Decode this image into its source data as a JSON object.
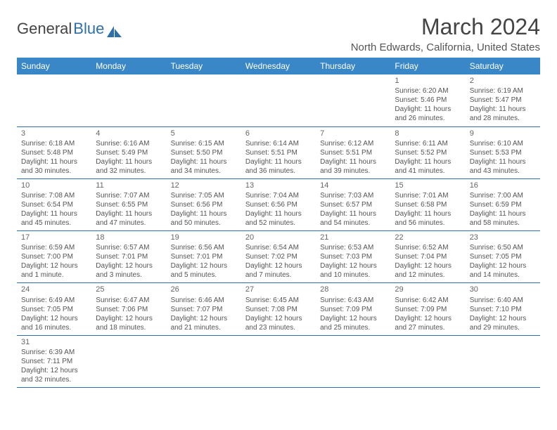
{
  "logo": {
    "text1": "General",
    "text2": "Blue"
  },
  "title": "March 2024",
  "location": "North Edwards, California, United States",
  "colors": {
    "header_bg": "#3a87c7",
    "border": "#2f6fa8",
    "text": "#555"
  },
  "dayNames": [
    "Sunday",
    "Monday",
    "Tuesday",
    "Wednesday",
    "Thursday",
    "Friday",
    "Saturday"
  ],
  "weeks": [
    [
      null,
      null,
      null,
      null,
      null,
      {
        "n": "1",
        "sr": "Sunrise: 6:20 AM",
        "ss": "Sunset: 5:46 PM",
        "d1": "Daylight: 11 hours",
        "d2": "and 26 minutes."
      },
      {
        "n": "2",
        "sr": "Sunrise: 6:19 AM",
        "ss": "Sunset: 5:47 PM",
        "d1": "Daylight: 11 hours",
        "d2": "and 28 minutes."
      }
    ],
    [
      {
        "n": "3",
        "sr": "Sunrise: 6:18 AM",
        "ss": "Sunset: 5:48 PM",
        "d1": "Daylight: 11 hours",
        "d2": "and 30 minutes."
      },
      {
        "n": "4",
        "sr": "Sunrise: 6:16 AM",
        "ss": "Sunset: 5:49 PM",
        "d1": "Daylight: 11 hours",
        "d2": "and 32 minutes."
      },
      {
        "n": "5",
        "sr": "Sunrise: 6:15 AM",
        "ss": "Sunset: 5:50 PM",
        "d1": "Daylight: 11 hours",
        "d2": "and 34 minutes."
      },
      {
        "n": "6",
        "sr": "Sunrise: 6:14 AM",
        "ss": "Sunset: 5:51 PM",
        "d1": "Daylight: 11 hours",
        "d2": "and 36 minutes."
      },
      {
        "n": "7",
        "sr": "Sunrise: 6:12 AM",
        "ss": "Sunset: 5:51 PM",
        "d1": "Daylight: 11 hours",
        "d2": "and 39 minutes."
      },
      {
        "n": "8",
        "sr": "Sunrise: 6:11 AM",
        "ss": "Sunset: 5:52 PM",
        "d1": "Daylight: 11 hours",
        "d2": "and 41 minutes."
      },
      {
        "n": "9",
        "sr": "Sunrise: 6:10 AM",
        "ss": "Sunset: 5:53 PM",
        "d1": "Daylight: 11 hours",
        "d2": "and 43 minutes."
      }
    ],
    [
      {
        "n": "10",
        "sr": "Sunrise: 7:08 AM",
        "ss": "Sunset: 6:54 PM",
        "d1": "Daylight: 11 hours",
        "d2": "and 45 minutes."
      },
      {
        "n": "11",
        "sr": "Sunrise: 7:07 AM",
        "ss": "Sunset: 6:55 PM",
        "d1": "Daylight: 11 hours",
        "d2": "and 47 minutes."
      },
      {
        "n": "12",
        "sr": "Sunrise: 7:05 AM",
        "ss": "Sunset: 6:56 PM",
        "d1": "Daylight: 11 hours",
        "d2": "and 50 minutes."
      },
      {
        "n": "13",
        "sr": "Sunrise: 7:04 AM",
        "ss": "Sunset: 6:56 PM",
        "d1": "Daylight: 11 hours",
        "d2": "and 52 minutes."
      },
      {
        "n": "14",
        "sr": "Sunrise: 7:03 AM",
        "ss": "Sunset: 6:57 PM",
        "d1": "Daylight: 11 hours",
        "d2": "and 54 minutes."
      },
      {
        "n": "15",
        "sr": "Sunrise: 7:01 AM",
        "ss": "Sunset: 6:58 PM",
        "d1": "Daylight: 11 hours",
        "d2": "and 56 minutes."
      },
      {
        "n": "16",
        "sr": "Sunrise: 7:00 AM",
        "ss": "Sunset: 6:59 PM",
        "d1": "Daylight: 11 hours",
        "d2": "and 58 minutes."
      }
    ],
    [
      {
        "n": "17",
        "sr": "Sunrise: 6:59 AM",
        "ss": "Sunset: 7:00 PM",
        "d1": "Daylight: 12 hours",
        "d2": "and 1 minute."
      },
      {
        "n": "18",
        "sr": "Sunrise: 6:57 AM",
        "ss": "Sunset: 7:01 PM",
        "d1": "Daylight: 12 hours",
        "d2": "and 3 minutes."
      },
      {
        "n": "19",
        "sr": "Sunrise: 6:56 AM",
        "ss": "Sunset: 7:01 PM",
        "d1": "Daylight: 12 hours",
        "d2": "and 5 minutes."
      },
      {
        "n": "20",
        "sr": "Sunrise: 6:54 AM",
        "ss": "Sunset: 7:02 PM",
        "d1": "Daylight: 12 hours",
        "d2": "and 7 minutes."
      },
      {
        "n": "21",
        "sr": "Sunrise: 6:53 AM",
        "ss": "Sunset: 7:03 PM",
        "d1": "Daylight: 12 hours",
        "d2": "and 10 minutes."
      },
      {
        "n": "22",
        "sr": "Sunrise: 6:52 AM",
        "ss": "Sunset: 7:04 PM",
        "d1": "Daylight: 12 hours",
        "d2": "and 12 minutes."
      },
      {
        "n": "23",
        "sr": "Sunrise: 6:50 AM",
        "ss": "Sunset: 7:05 PM",
        "d1": "Daylight: 12 hours",
        "d2": "and 14 minutes."
      }
    ],
    [
      {
        "n": "24",
        "sr": "Sunrise: 6:49 AM",
        "ss": "Sunset: 7:05 PM",
        "d1": "Daylight: 12 hours",
        "d2": "and 16 minutes."
      },
      {
        "n": "25",
        "sr": "Sunrise: 6:47 AM",
        "ss": "Sunset: 7:06 PM",
        "d1": "Daylight: 12 hours",
        "d2": "and 18 minutes."
      },
      {
        "n": "26",
        "sr": "Sunrise: 6:46 AM",
        "ss": "Sunset: 7:07 PM",
        "d1": "Daylight: 12 hours",
        "d2": "and 21 minutes."
      },
      {
        "n": "27",
        "sr": "Sunrise: 6:45 AM",
        "ss": "Sunset: 7:08 PM",
        "d1": "Daylight: 12 hours",
        "d2": "and 23 minutes."
      },
      {
        "n": "28",
        "sr": "Sunrise: 6:43 AM",
        "ss": "Sunset: 7:09 PM",
        "d1": "Daylight: 12 hours",
        "d2": "and 25 minutes."
      },
      {
        "n": "29",
        "sr": "Sunrise: 6:42 AM",
        "ss": "Sunset: 7:09 PM",
        "d1": "Daylight: 12 hours",
        "d2": "and 27 minutes."
      },
      {
        "n": "30",
        "sr": "Sunrise: 6:40 AM",
        "ss": "Sunset: 7:10 PM",
        "d1": "Daylight: 12 hours",
        "d2": "and 29 minutes."
      }
    ],
    [
      {
        "n": "31",
        "sr": "Sunrise: 6:39 AM",
        "ss": "Sunset: 7:11 PM",
        "d1": "Daylight: 12 hours",
        "d2": "and 32 minutes."
      },
      null,
      null,
      null,
      null,
      null,
      null
    ]
  ]
}
